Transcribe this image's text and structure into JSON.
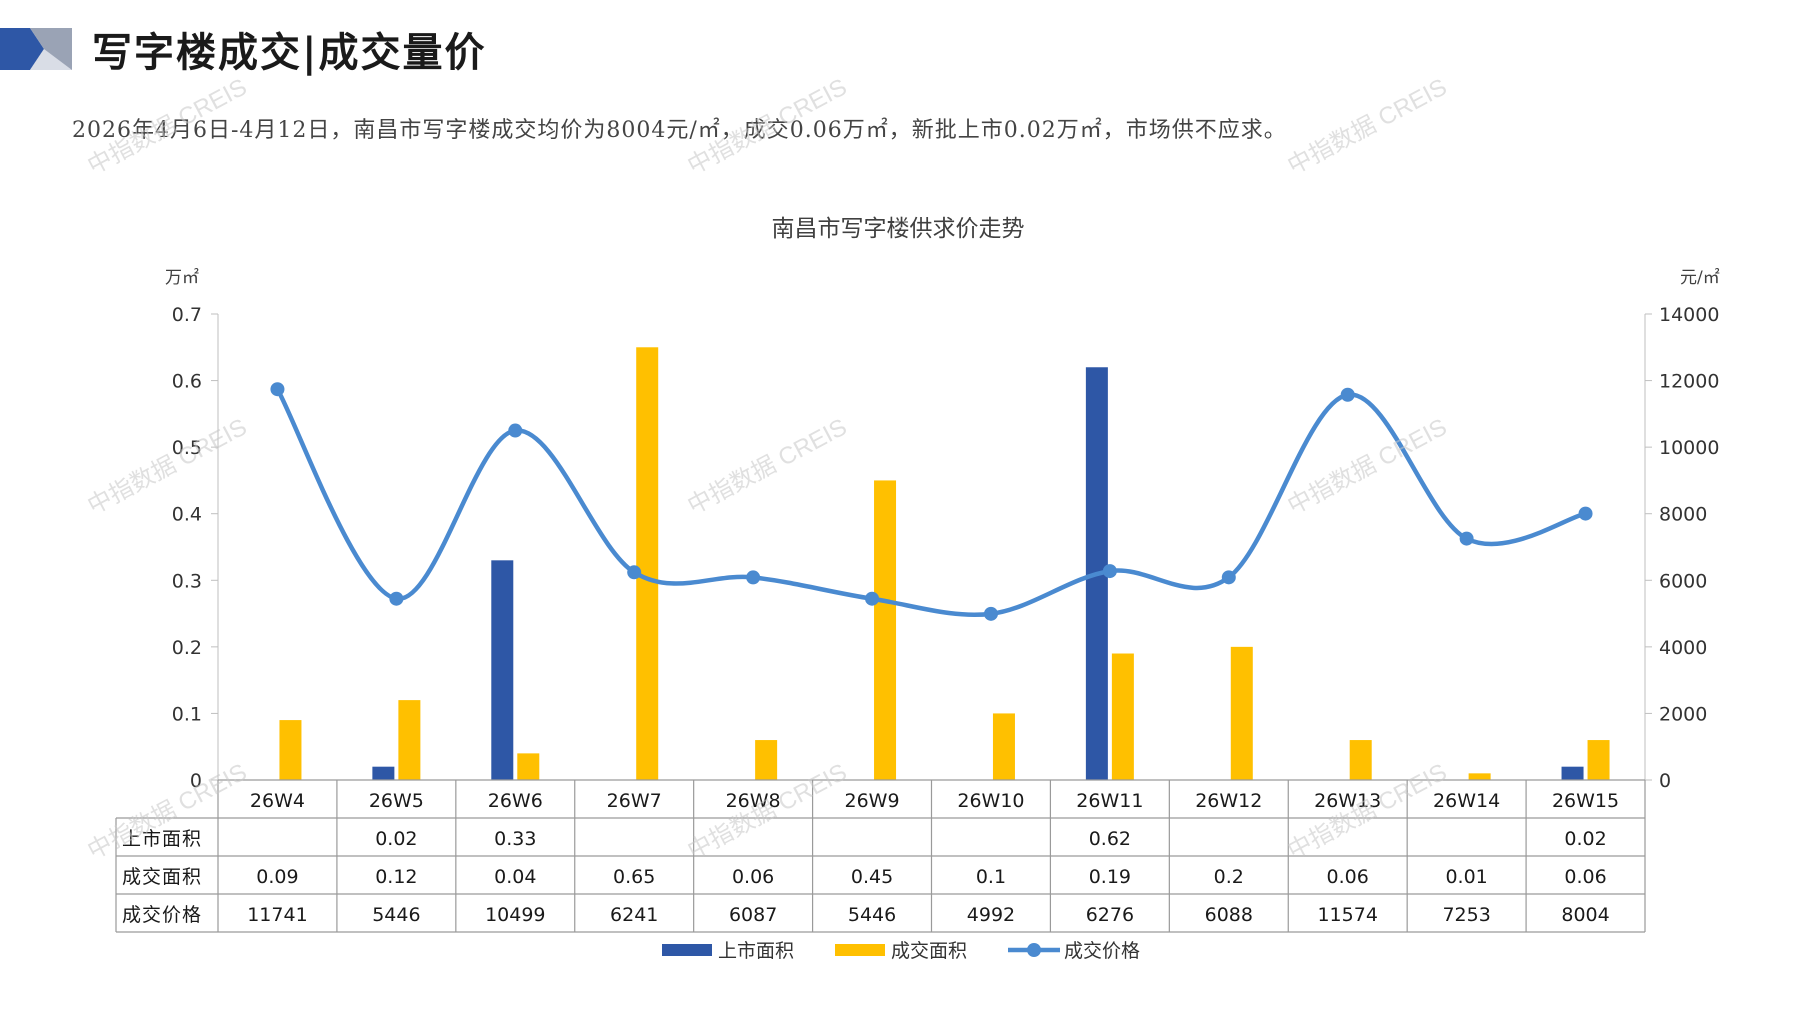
{
  "header": {
    "title": "写字楼成交|成交量价",
    "summary": "2026年4月6日-4月12日，南昌市写字楼成交均价为8004元/㎡，成交0.06万㎡，新批上市0.02万㎡，市场供不应求。"
  },
  "watermark": "中指数据 CREIS",
  "colors": {
    "supply": "#2E57A6",
    "deal_area": "#FFC000",
    "price": "#4A8AD0"
  },
  "chart_data": {
    "type": "bar",
    "title": "南昌市写字楼供求价走势",
    "y_left_unit": "万㎡",
    "y_right_unit": "元/㎡",
    "y_left_range": [
      0,
      0.7
    ],
    "y_left_ticks": [
      "0",
      "0.1",
      "0.2",
      "0.3",
      "0.4",
      "0.5",
      "0.6",
      "0.7"
    ],
    "y_right_range": [
      0,
      14000
    ],
    "y_right_ticks": [
      "0",
      "2000",
      "4000",
      "6000",
      "8000",
      "10000",
      "12000",
      "14000"
    ],
    "categories": [
      "26W4",
      "26W5",
      "26W6",
      "26W7",
      "26W8",
      "26W9",
      "26W10",
      "26W11",
      "26W12",
      "26W13",
      "26W14",
      "26W15"
    ],
    "series": [
      {
        "name": "上市面积",
        "kind": "bar",
        "axis": "left",
        "values": [
          null,
          0.02,
          0.33,
          null,
          null,
          null,
          null,
          0.62,
          null,
          null,
          null,
          0.02
        ],
        "labels": [
          "",
          "0.02",
          "0.33",
          "",
          "",
          "",
          "",
          "0.62",
          "",
          "",
          "",
          "0.02"
        ]
      },
      {
        "name": "成交面积",
        "kind": "bar",
        "axis": "left",
        "values": [
          0.09,
          0.12,
          0.04,
          0.65,
          0.06,
          0.45,
          0.1,
          0.19,
          0.2,
          0.06,
          0.01,
          0.06
        ],
        "labels": [
          "0.09",
          "0.12",
          "0.04",
          "0.65",
          "0.06",
          "0.45",
          "0.1",
          "0.19",
          "0.2",
          "0.06",
          "0.01",
          "0.06"
        ]
      },
      {
        "name": "成交价格",
        "kind": "line",
        "axis": "right",
        "values": [
          11741,
          5446,
          10499,
          6241,
          6087,
          5446,
          4992,
          6276,
          6088,
          11574,
          7253,
          8004
        ],
        "labels": [
          "11741",
          "5446",
          "10499",
          "6241",
          "6087",
          "5446",
          "4992",
          "6276",
          "6088",
          "11574",
          "7253",
          "8004"
        ]
      }
    ],
    "legend_position": "bottom",
    "grid": false
  }
}
